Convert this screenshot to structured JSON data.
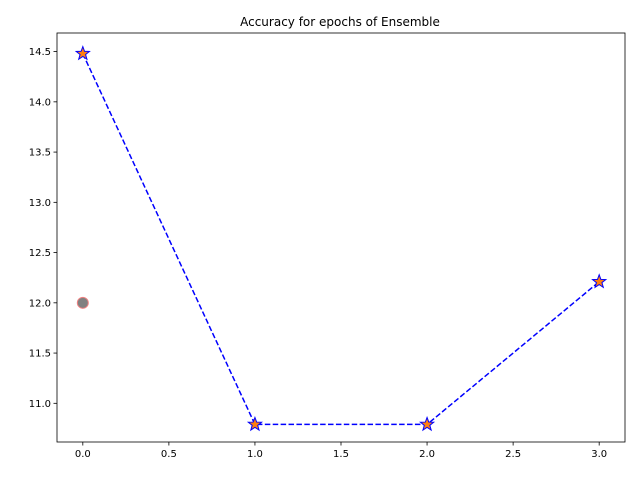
{
  "chart_data": {
    "type": "line",
    "title": "Accuracy for epochs of Ensemble",
    "xlabel": "",
    "ylabel": "",
    "xlim": [
      -0.15,
      3.15
    ],
    "ylim": [
      10.615,
      14.685
    ],
    "xticks": [
      0.0,
      0.5,
      1.0,
      1.5,
      2.0,
      2.5,
      3.0
    ],
    "xtick_labels": [
      "0.0",
      "0.5",
      "1.0",
      "1.5",
      "2.0",
      "2.5",
      "3.0"
    ],
    "yticks": [
      11.0,
      11.5,
      12.0,
      12.5,
      13.0,
      13.5,
      14.0,
      14.5
    ],
    "ytick_labels": [
      "11.0",
      "11.5",
      "12.0",
      "12.5",
      "13.0",
      "13.5",
      "14.0",
      "14.5"
    ],
    "grid": false,
    "series": [
      {
        "x": [
          0,
          1,
          2,
          3
        ],
        "y": [
          14.48,
          10.79,
          10.79,
          12.21
        ],
        "line_color": "#0000ff",
        "line_style": "dashed",
        "marker": "star",
        "marker_fill": "#ff7f0e",
        "marker_edge": "#0000ff"
      },
      {
        "x": [
          0
        ],
        "y": [
          12.0
        ],
        "line_style": "none",
        "marker": "circle",
        "marker_fill": "#808080",
        "marker_edge": "#f08080"
      }
    ]
  }
}
